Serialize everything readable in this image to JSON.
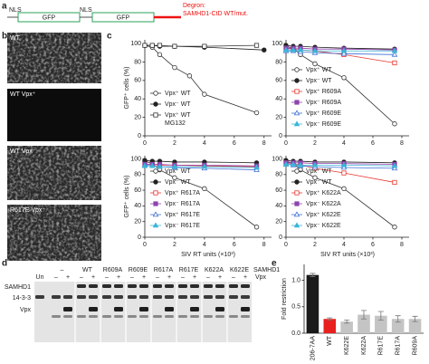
{
  "panel_a": {
    "label": "a",
    "nls_1": "NLS",
    "gfp_1": "GFP",
    "nls_2": "NLS",
    "gfp_2": "GFP",
    "degron": "Degron:",
    "degron_detail": "SAMHD1-CtD WT/mut."
  },
  "panel_b": {
    "label": "b",
    "images": [
      "WT",
      "WT Vpx⁺",
      "WT Vpx⁻",
      "R617E Vpx⁻"
    ]
  },
  "panel_c": {
    "label": "c"
  },
  "panel_d": {
    "label": "d",
    "lanes": [
      "–",
      "WT",
      "R609A",
      "R609E",
      "R617A",
      "R617E",
      "K622A",
      "K622E"
    ],
    "header_right": "SAMHD1",
    "un": "Un",
    "signs": [
      "–",
      "+",
      "–",
      "+",
      "–",
      "+",
      "–",
      "+",
      "–",
      "+",
      "–",
      "+",
      "–",
      "+",
      "–",
      "+"
    ],
    "sign_right": "Vpx",
    "rows": [
      "SAMHD1",
      "14-3-3",
      "Vpx"
    ]
  },
  "panel_e": {
    "label": "e"
  },
  "chart_data": [
    {
      "type": "line",
      "y_label": "GFP⁺ cells (%)",
      "xlim": [
        0,
        8.5
      ],
      "ylim": [
        0,
        104
      ],
      "xticks": [
        0,
        2,
        4,
        6,
        8
      ],
      "yticks": [
        0,
        20,
        40,
        60,
        80,
        100
      ],
      "legend": "lower left",
      "series": [
        {
          "name": "Vpx⁺ WT",
          "color": "#333333",
          "marker": "circle-open",
          "x": [
            0,
            0.5,
            1,
            2,
            3,
            4,
            7.5
          ],
          "values": [
            98,
            96,
            88,
            74,
            65,
            45,
            25
          ]
        },
        {
          "name": "Vpx⁻ WT",
          "color": "#222222",
          "marker": "circle",
          "x": [
            0,
            0.5,
            1,
            2,
            4,
            8
          ],
          "values": [
            98,
            98,
            97,
            97,
            96,
            93
          ]
        },
        {
          "name": "Vpx⁺ WT\nMG132",
          "color": "#333333",
          "marker": "square-open",
          "x": [
            0,
            0.5,
            1,
            2,
            4,
            7.5
          ],
          "values": [
            98,
            98,
            98,
            97,
            97,
            98
          ]
        }
      ]
    },
    {
      "type": "line",
      "xlim": [
        0,
        8.5
      ],
      "ylim": [
        0,
        104
      ],
      "xticks": [
        0,
        2,
        4,
        6,
        8
      ],
      "yticks": [
        0,
        20,
        40,
        60,
        80,
        100
      ],
      "legend": "lower left",
      "series": [
        {
          "name": "Vpx⁺ WT",
          "color": "#333333",
          "marker": "circle-open",
          "x": [
            0,
            0.5,
            1,
            2,
            4,
            7.5
          ],
          "values": [
            97,
            95,
            88,
            78,
            63,
            13
          ]
        },
        {
          "name": "Vpx⁻ WT",
          "color": "#222222",
          "marker": "circle",
          "x": [
            0,
            0.5,
            1,
            2,
            4,
            7.5
          ],
          "values": [
            98,
            97,
            97,
            96,
            95,
            94
          ]
        },
        {
          "name": "Vpx⁺ R609A",
          "color": "#e8372e",
          "marker": "square-open",
          "x": [
            0,
            0.5,
            1,
            2,
            4,
            7.5
          ],
          "values": [
            95,
            94,
            93,
            92,
            88,
            79
          ]
        },
        {
          "name": "Vpx⁻ R609A",
          "color": "#8e44ad",
          "marker": "square",
          "x": [
            0,
            0.5,
            1,
            2,
            4,
            7.5
          ],
          "values": [
            95,
            95,
            95,
            94,
            94,
            93
          ]
        },
        {
          "name": "Vpx⁺ R609E",
          "color": "#3d6fd6",
          "marker": "triangle-open",
          "x": [
            0,
            0.5,
            1,
            2,
            4,
            7.5
          ],
          "values": [
            92,
            92,
            91,
            90,
            89,
            88
          ]
        },
        {
          "name": "Vpx⁻ R609E",
          "color": "#3bb5d8",
          "marker": "triangle",
          "x": [
            0,
            0.5,
            1,
            2,
            4,
            7.5
          ],
          "values": [
            93,
            93,
            93,
            92,
            92,
            92
          ]
        }
      ]
    },
    {
      "type": "line",
      "x_label": "SIV RT units (×10³)",
      "y_label": "GFP⁺ cells (%)",
      "xlim": [
        0,
        8.5
      ],
      "ylim": [
        0,
        104
      ],
      "xticks": [
        0,
        2,
        4,
        6,
        8
      ],
      "yticks": [
        0,
        20,
        40,
        60,
        80,
        100
      ],
      "legend": "lower left",
      "series": [
        {
          "name": "Vpx⁺ WT",
          "color": "#333333",
          "marker": "circle-open",
          "x": [
            0,
            0.5,
            1,
            2,
            4,
            7.5
          ],
          "values": [
            97,
            94,
            86,
            76,
            62,
            13
          ]
        },
        {
          "name": "Vpx⁻ WT",
          "color": "#222222",
          "marker": "circle",
          "x": [
            0,
            0.5,
            1,
            2,
            4,
            7.5
          ],
          "values": [
            98,
            97,
            97,
            96,
            96,
            95
          ]
        },
        {
          "name": "Vpx⁺ R617A",
          "color": "#e8372e",
          "marker": "square-open",
          "x": [
            0,
            0.5,
            1,
            2,
            4,
            7.5
          ],
          "values": [
            93,
            93,
            92,
            92,
            91,
            90
          ]
        },
        {
          "name": "Vpx⁻ R617A",
          "color": "#8e44ad",
          "marker": "square",
          "x": [
            0,
            0.5,
            1,
            2,
            4,
            7.5
          ],
          "values": [
            93,
            93,
            93,
            92,
            92,
            91
          ]
        },
        {
          "name": "Vpx⁺ R617E",
          "color": "#3d6fd6",
          "marker": "triangle-open",
          "x": [
            0,
            0.5,
            1,
            2,
            4,
            7.5
          ],
          "values": [
            92,
            91,
            90,
            89,
            88,
            86
          ]
        },
        {
          "name": "Vpx⁻ R617E",
          "color": "#3bb5d8",
          "marker": "triangle",
          "x": [
            0,
            0.5,
            1,
            2,
            4,
            7.5
          ],
          "values": [
            91,
            91,
            90,
            90,
            90,
            89
          ]
        }
      ]
    },
    {
      "type": "line",
      "x_label": "SIV RT units (×10³)",
      "xlim": [
        0,
        8.5
      ],
      "ylim": [
        0,
        104
      ],
      "xticks": [
        0,
        2,
        4,
        6,
        8
      ],
      "yticks": [
        0,
        20,
        40,
        60,
        80,
        100
      ],
      "legend": "lower left",
      "series": [
        {
          "name": "Vpx⁺ WT",
          "color": "#333333",
          "marker": "circle-open",
          "x": [
            0,
            0.5,
            1,
            2,
            4,
            7.5
          ],
          "values": [
            97,
            94,
            86,
            76,
            62,
            13
          ]
        },
        {
          "name": "Vpx⁻ WT",
          "color": "#222222",
          "marker": "circle",
          "x": [
            0,
            0.5,
            1,
            2,
            4,
            7.5
          ],
          "values": [
            98,
            97,
            97,
            96,
            96,
            95
          ]
        },
        {
          "name": "Vpx⁺ K622A",
          "color": "#e8372e",
          "marker": "square-open",
          "x": [
            0,
            0.5,
            1,
            2,
            4,
            7.5
          ],
          "values": [
            95,
            94,
            92,
            88,
            82,
            70
          ]
        },
        {
          "name": "Vpx⁻ K622A",
          "color": "#8e44ad",
          "marker": "square",
          "x": [
            0,
            0.5,
            1,
            2,
            4,
            7.5
          ],
          "values": [
            95,
            95,
            95,
            94,
            94,
            93
          ]
        },
        {
          "name": "Vpx⁺ K622E",
          "color": "#3d6fd6",
          "marker": "triangle-open",
          "x": [
            0,
            0.5,
            1,
            2,
            4,
            7.5
          ],
          "values": [
            93,
            92,
            91,
            90,
            89,
            88
          ]
        },
        {
          "name": "Vpx⁻ K622E",
          "color": "#3bb5d8",
          "marker": "triangle",
          "x": [
            0,
            0.5,
            1,
            2,
            4,
            7.5
          ],
          "values": [
            93,
            93,
            92,
            92,
            92,
            91
          ]
        }
      ]
    },
    {
      "type": "bar",
      "y_label": "Fold restriction",
      "categories": [
        "206-7AA",
        "WT",
        "K622E",
        "K622A",
        "R617E",
        "R617A",
        "R609A"
      ],
      "values": [
        1.1,
        0.27,
        0.22,
        0.35,
        0.33,
        0.27,
        0.27
      ],
      "errors": [
        0.03,
        0.02,
        0.03,
        0.08,
        0.08,
        0.06,
        0.05
      ],
      "colors": [
        "#1a1a1a",
        "#e8201e",
        "#c4c4c4",
        "#c4c4c4",
        "#c4c4c4",
        "#c4c4c4",
        "#c4c4c4"
      ],
      "ylim": [
        0,
        1.3
      ],
      "yticks": [
        {
          "value": 0,
          "label": "0.0"
        },
        0.5,
        {
          "value": 1,
          "label": "1.0"
        }
      ]
    }
  ]
}
